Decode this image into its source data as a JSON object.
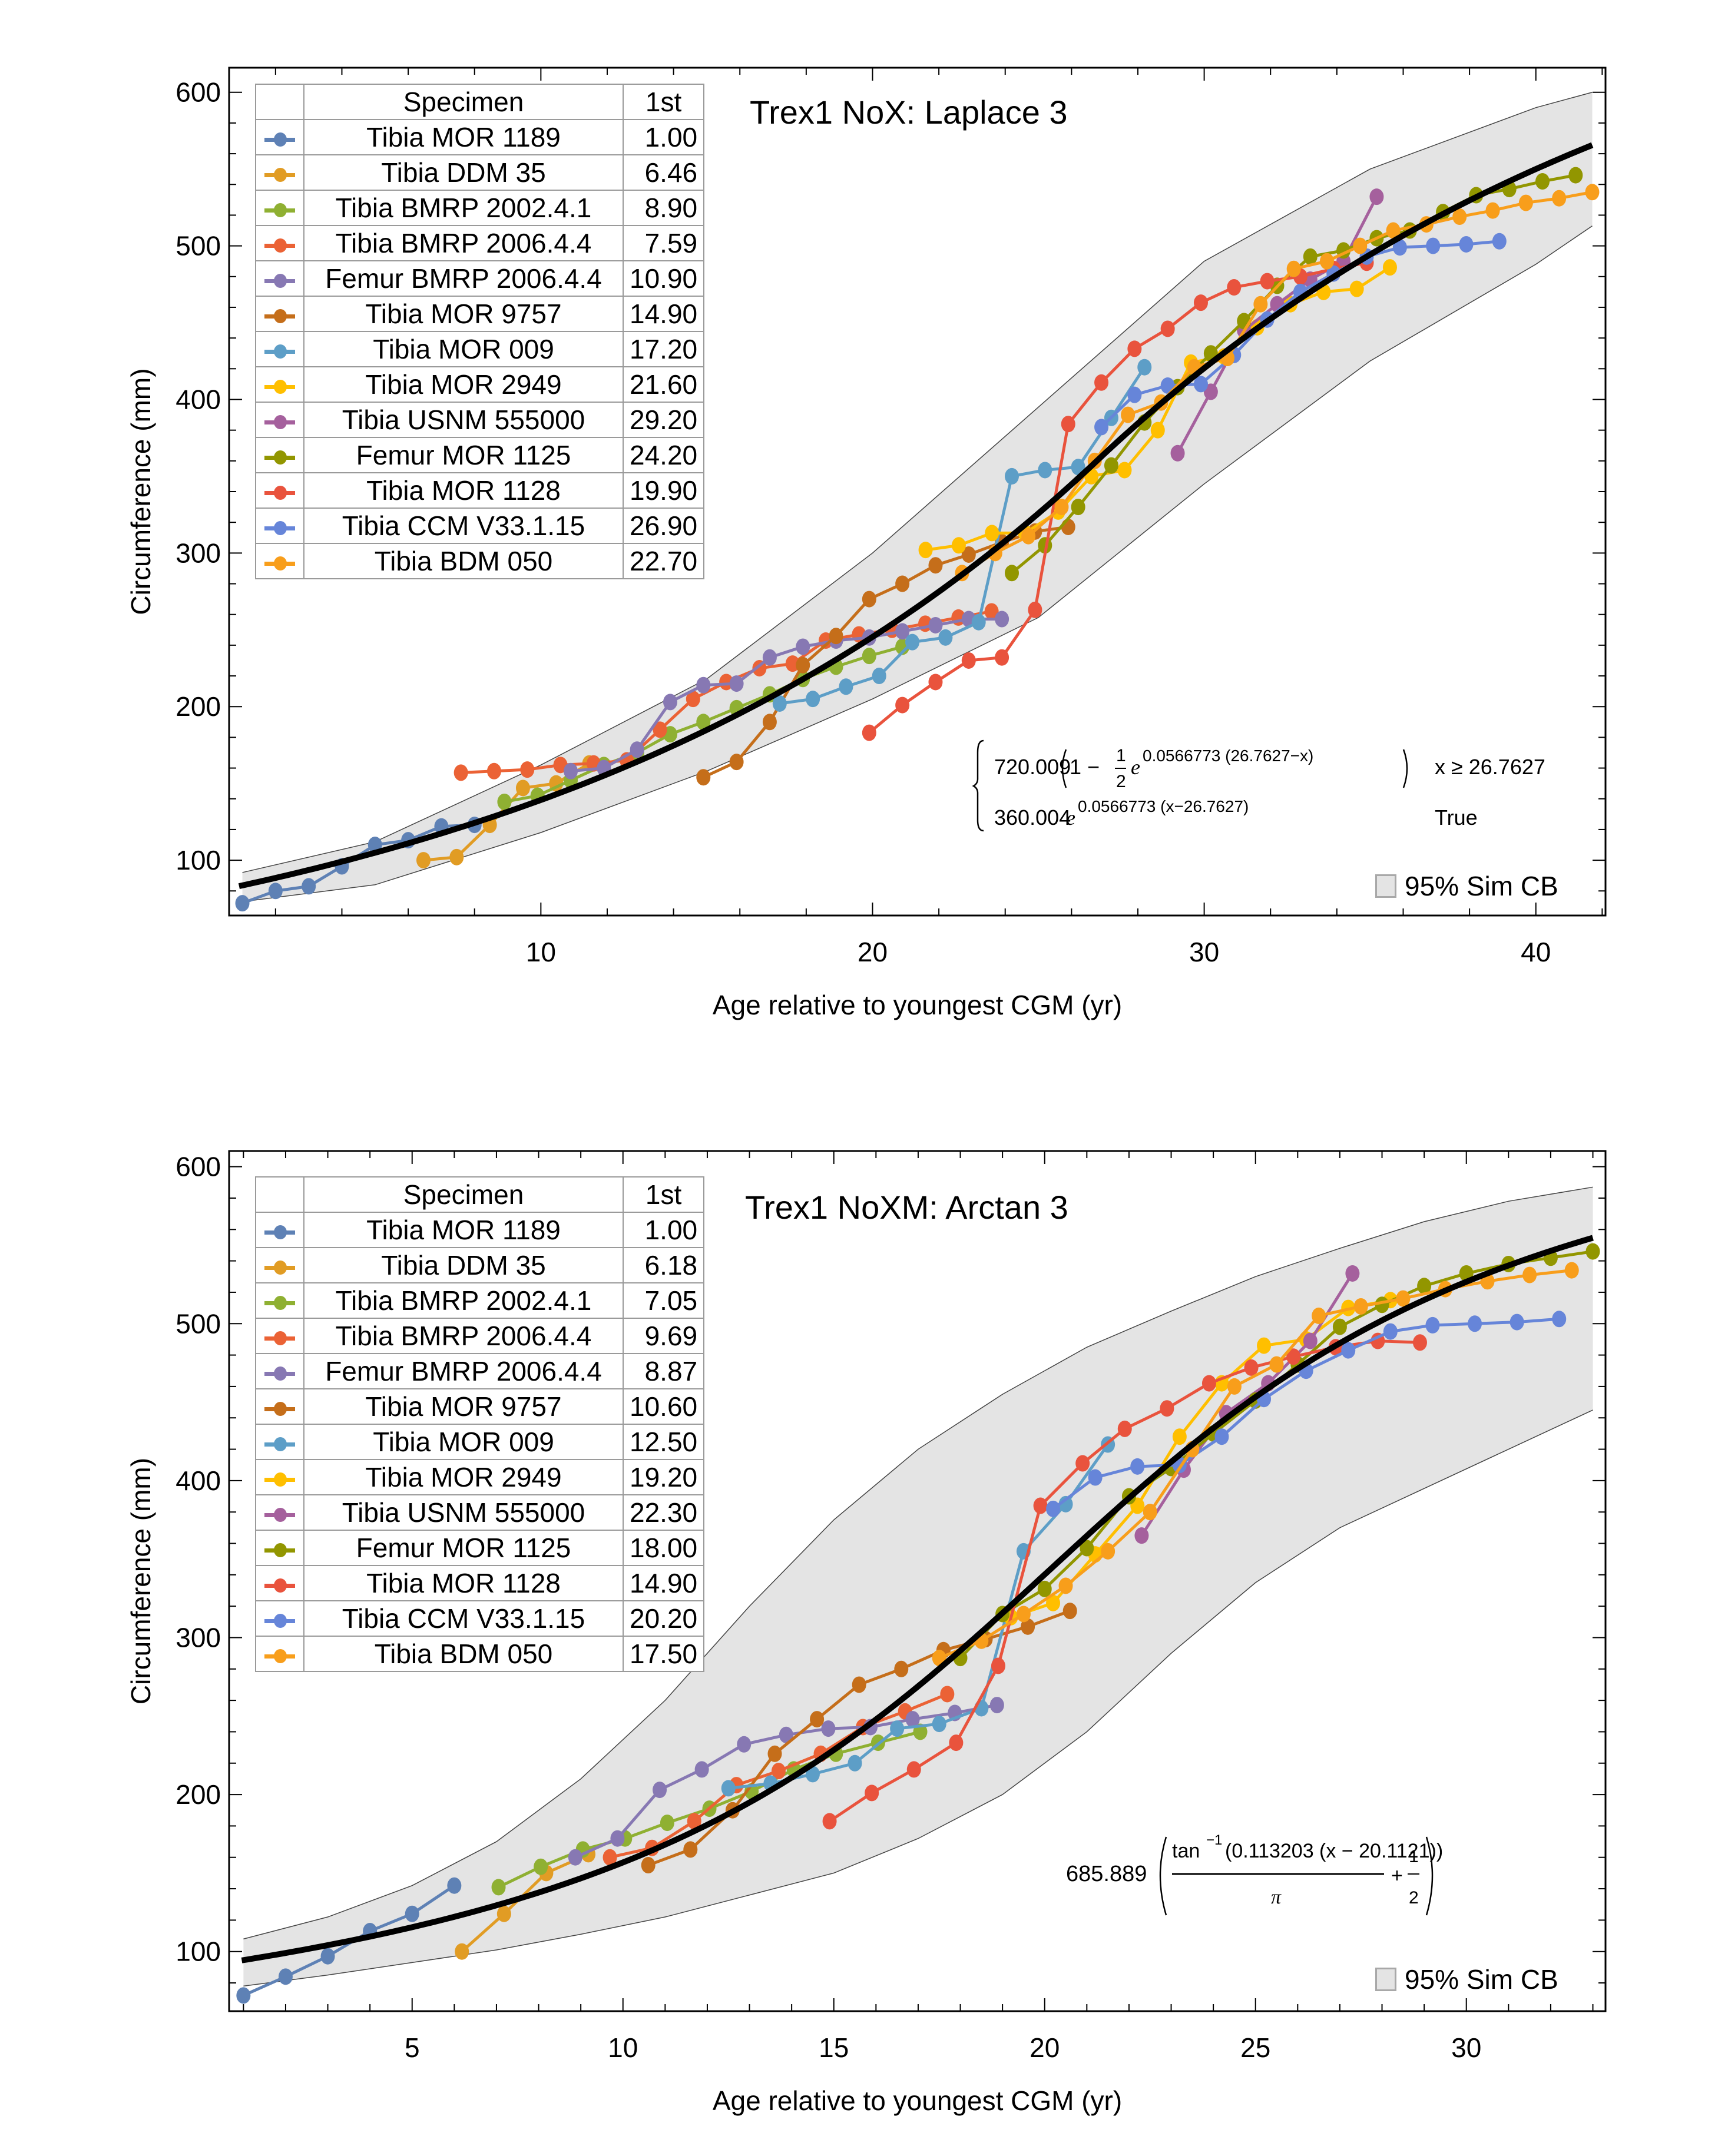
{
  "chart_data": [
    {
      "type": "line",
      "title": "Trex1 NoX: Laplace 3",
      "xlabel": "Age relative to youngest CGM (yr)",
      "ylabel": "Circumference (mm)",
      "xlim": [
        0.6,
        42.1
      ],
      "ylim": [
        64,
        616
      ],
      "xticks": [
        10,
        20,
        30,
        40
      ],
      "yticks": [
        100,
        200,
        300,
        400,
        500,
        600
      ],
      "legend_header": [
        "Specimen",
        "1st"
      ],
      "legend_position": "top-left",
      "ci_label": "95% Sim CB",
      "formula": {
        "type": "piecewise",
        "row1_coef": "720.009",
        "row1_body": "1 − ",
        "row1_frac_num": "1",
        "row1_frac_den": "2",
        "row1_exp": "0.0566773 (26.7627−x)",
        "row1_cond": "x ≥ 26.7627",
        "row2_coef": "360.004",
        "row2_exp": "0.0566773 (x−26.7627)",
        "row2_cond": "True"
      },
      "fit": {
        "model": "laplace",
        "a": 720.009,
        "k": 0.0566773,
        "x0": 26.7627
      },
      "ci_band": {
        "x": [
          1,
          5,
          10,
          15,
          20,
          25,
          30,
          35,
          40,
          41.7
        ],
        "lower": [
          73,
          84,
          118,
          158,
          205,
          258,
          345,
          425,
          488,
          513
        ],
        "upper": [
          92,
          112,
          162,
          218,
          300,
          395,
          490,
          550,
          590,
          600
        ]
      },
      "series": [
        {
          "name": "Tibia MOR 1189",
          "first": "1.00",
          "color": "#5E81B5",
          "x": [
            1,
            2,
            3,
            4,
            5,
            6,
            7,
            8
          ],
          "y": [
            72,
            80,
            83,
            96,
            110,
            113,
            122,
            123
          ]
        },
        {
          "name": "Tibia DDM 35",
          "first": "6.46",
          "color": "#E19C24",
          "x": [
            6.46,
            7.46,
            8.46,
            9.46,
            10.46,
            11.46
          ],
          "y": [
            100,
            102,
            123,
            147,
            150,
            163
          ]
        },
        {
          "name": "Tibia BMRP 2002.4.1",
          "first": "8.90",
          "color": "#8FB032",
          "x": [
            8.9,
            9.9,
            10.9,
            11.9,
            12.9,
            13.9,
            14.9,
            15.9,
            16.9,
            17.9,
            18.9,
            19.9,
            20.9
          ],
          "y": [
            138,
            142,
            152,
            162,
            170,
            182,
            190,
            199,
            208,
            218,
            226,
            233,
            239
          ]
        },
        {
          "name": "Tibia BMRP 2006.4.4",
          "first": "7.59",
          "color": "#EB6235",
          "x": [
            7.59,
            8.59,
            9.59,
            10.59,
            11.59,
            12.59,
            13.59,
            14.59,
            15.59,
            16.59,
            17.59,
            18.59,
            19.59,
            20.59,
            21.59,
            22.59,
            23.59
          ],
          "y": [
            157,
            158,
            159,
            162,
            163,
            165,
            185,
            205,
            216,
            225,
            228,
            243,
            247,
            250,
            254,
            258,
            262
          ]
        },
        {
          "name": "Femur BMRP 2006.4.4",
          "first": "10.90",
          "color": "#8778B3",
          "x": [
            10.9,
            11.9,
            12.9,
            13.9,
            14.9,
            15.9,
            16.9,
            17.9,
            18.9,
            19.9,
            20.9,
            21.9,
            22.9,
            23.9
          ],
          "y": [
            158,
            160,
            172,
            203,
            214,
            215,
            232,
            239,
            243,
            245,
            249,
            253,
            257,
            257
          ]
        },
        {
          "name": "Tibia MOR 9757",
          "first": "14.90",
          "color": "#C56E1A",
          "x": [
            14.9,
            15.9,
            16.9,
            17.9,
            18.9,
            19.9,
            20.9,
            21.9,
            22.9,
            23.9,
            24.9,
            25.9
          ],
          "y": [
            154,
            164,
            190,
            227,
            246,
            270,
            280,
            292,
            299,
            307,
            314,
            317
          ]
        },
        {
          "name": "Tibia MOR 009",
          "first": "17.20",
          "color": "#5D9EC7",
          "x": [
            17.2,
            18.2,
            19.2,
            20.2,
            21.2,
            22.2,
            23.2,
            24.2,
            25.2,
            26.2,
            27.2,
            28.2
          ],
          "y": [
            202,
            205,
            213,
            220,
            242,
            245,
            255,
            350,
            354,
            356,
            388,
            421
          ]
        },
        {
          "name": "Tibia MOR 2949",
          "first": "21.60",
          "color": "#FFBF00",
          "x": [
            21.6,
            22.6,
            23.6,
            24.6,
            25.6,
            26.6,
            27.6,
            28.6,
            29.6,
            30.6,
            31.6,
            32.6,
            33.6,
            34.6,
            35.6
          ],
          "y": [
            302,
            305,
            313,
            313,
            327,
            350,
            354,
            380,
            424,
            428,
            447,
            462,
            470,
            472,
            486
          ]
        },
        {
          "name": "Tibia USNM 555000",
          "first": "29.20",
          "color": "#A5609D",
          "x": [
            29.2,
            30.2,
            31.2,
            32.2,
            33.2,
            34.2,
            35.2
          ],
          "y": [
            365,
            405,
            445,
            462,
            478,
            490,
            532
          ]
        },
        {
          "name": "Femur MOR 1125",
          "first": "24.20",
          "color": "#929600",
          "x": [
            24.2,
            25.2,
            26.2,
            27.2,
            28.2,
            29.2,
            30.2,
            31.2,
            32.2,
            33.2,
            34.2,
            35.2,
            36.2,
            37.2,
            38.2,
            39.2,
            40.2,
            41.2
          ],
          "y": [
            287,
            305,
            330,
            357,
            385,
            408,
            430,
            451,
            474,
            493,
            497,
            505,
            510,
            522,
            533,
            537,
            542,
            546
          ]
        },
        {
          "name": "Tibia MOR 1128",
          "first": "19.90",
          "color": "#E9533D",
          "x": [
            19.9,
            20.9,
            21.9,
            22.9,
            23.9,
            24.9,
            25.9,
            26.9,
            27.9,
            28.9,
            29.9,
            30.9,
            31.9,
            32.9,
            33.9,
            34.9
          ],
          "y": [
            183,
            201,
            216,
            230,
            232,
            263,
            384,
            411,
            433,
            446,
            463,
            473,
            477,
            480,
            485,
            489
          ]
        },
        {
          "name": "Tibia CCM V33.1.15",
          "first": "26.90",
          "color": "#6685D9",
          "x": [
            26.9,
            27.9,
            28.9,
            29.9,
            30.9,
            31.9,
            32.9,
            33.9,
            34.9,
            35.9,
            36.9,
            37.9,
            38.9
          ],
          "y": [
            382,
            403,
            409,
            410,
            429,
            452,
            470,
            482,
            493,
            499,
            500,
            501,
            503
          ]
        },
        {
          "name": "Tibia BDM 050",
          "first": "22.70",
          "color": "#F89E1B",
          "x": [
            22.7,
            23.7,
            24.7,
            25.7,
            26.7,
            27.7,
            28.7,
            29.7,
            30.7,
            31.7,
            32.7,
            33.7,
            34.7,
            35.7,
            36.7,
            37.7,
            38.7,
            39.7,
            40.7,
            41.7
          ],
          "y": [
            287,
            300,
            311,
            330,
            360,
            390,
            398,
            421,
            427,
            462,
            485,
            490,
            500,
            510,
            514,
            519,
            523,
            528,
            531,
            535
          ]
        }
      ]
    },
    {
      "type": "line",
      "title": "Trex1 NoXM: Arctan 3",
      "xlabel": "Age relative to youngest CGM (yr)",
      "ylabel": "Circumference (mm)",
      "xlim": [
        0.66,
        33.3
      ],
      "ylim": [
        62,
        610
      ],
      "xticks": [
        5,
        10,
        15,
        20,
        25,
        30
      ],
      "yticks": [
        100,
        200,
        300,
        400,
        500,
        600
      ],
      "legend_header": [
        "Specimen",
        "1st"
      ],
      "legend_position": "top-left",
      "ci_label": "95% Sim CB",
      "formula": {
        "type": "arctan",
        "coef": "685.889",
        "numerator_fn": "tan",
        "numerator_sup": "−1",
        "numerator_arg": "(0.113203 (x − 20.1121))",
        "denominator": "π",
        "plus": "+",
        "frac_num": "1",
        "frac_den": "2"
      },
      "fit": {
        "model": "arctan",
        "a": 685.889,
        "k": 0.113203,
        "x0": 20.1121
      },
      "ci_band": {
        "x": [
          1,
          3,
          5,
          7,
          9,
          11,
          13,
          15,
          17,
          19,
          21,
          23,
          25,
          27,
          29,
          31,
          33
        ],
        "lower": [
          78,
          85,
          93,
          101,
          111,
          122,
          136,
          150,
          172,
          200,
          240,
          290,
          335,
          370,
          395,
          420,
          445
        ],
        "upper": [
          108,
          122,
          142,
          170,
          210,
          260,
          320,
          375,
          420,
          455,
          485,
          508,
          530,
          548,
          565,
          578,
          587
        ]
      },
      "series": [
        {
          "name": "Tibia MOR 1189",
          "first": "1.00",
          "color": "#5E81B5",
          "x": [
            1,
            2,
            3,
            4,
            5,
            6
          ],
          "y": [
            72,
            84,
            97,
            113,
            124,
            142
          ]
        },
        {
          "name": "Tibia DDM 35",
          "first": "6.18",
          "color": "#E19C24",
          "x": [
            6.18,
            7.18,
            8.18,
            9.18
          ],
          "y": [
            100,
            124,
            150,
            162
          ]
        },
        {
          "name": "Tibia BMRP 2002.4.1",
          "first": "7.05",
          "color": "#8FB032",
          "x": [
            7.05,
            8.05,
            9.05,
            10.05,
            11.05,
            12.05,
            13.05,
            14.05,
            15.05,
            16.05,
            17.05
          ],
          "y": [
            141,
            154,
            165,
            172,
            182,
            191,
            202,
            216,
            226,
            233,
            240
          ]
        },
        {
          "name": "Tibia BMRP 2006.4.4",
          "first": "9.69",
          "color": "#EB6235",
          "x": [
            9.69,
            10.69,
            11.69,
            12.69,
            13.69,
            14.69,
            15.69,
            16.69,
            17.69
          ],
          "y": [
            160,
            166,
            183,
            206,
            215,
            226,
            243,
            253,
            264
          ]
        },
        {
          "name": "Femur BMRP 2006.4.4",
          "first": "8.87",
          "color": "#8778B3",
          "x": [
            8.87,
            9.87,
            10.87,
            11.87,
            12.87,
            13.87,
            14.87,
            15.87,
            16.87,
            17.87,
            18.87
          ],
          "y": [
            160,
            172,
            203,
            216,
            232,
            238,
            242,
            243,
            248,
            252,
            257
          ]
        },
        {
          "name": "Tibia MOR 9757",
          "first": "10.60",
          "color": "#C56E1A",
          "x": [
            10.6,
            11.6,
            12.6,
            13.6,
            14.6,
            15.6,
            16.6,
            17.6,
            18.6,
            19.6,
            20.6
          ],
          "y": [
            155,
            165,
            190,
            226,
            248,
            270,
            280,
            292,
            299,
            307,
            317
          ]
        },
        {
          "name": "Tibia MOR 009",
          "first": "12.50",
          "color": "#5D9EC7",
          "x": [
            12.5,
            13.5,
            14.5,
            15.5,
            16.5,
            17.5,
            18.5,
            19.5,
            20.5,
            21.5
          ],
          "y": [
            204,
            207,
            213,
            220,
            242,
            245,
            255,
            355,
            385,
            423
          ]
        },
        {
          "name": "Tibia MOR 2949",
          "first": "19.20",
          "color": "#FFBF00",
          "x": [
            19.2,
            20.2,
            21.2,
            22.2,
            23.2,
            24.2,
            25.2,
            26.2,
            27.2,
            28.2
          ],
          "y": [
            313,
            322,
            353,
            384,
            428,
            462,
            486,
            490,
            510,
            515
          ]
        },
        {
          "name": "Tibia USNM 555000",
          "first": "22.30",
          "color": "#A5609D",
          "x": [
            22.3,
            23.3,
            24.3,
            25.3,
            26.3,
            27.3
          ],
          "y": [
            365,
            407,
            443,
            462,
            489,
            532
          ]
        },
        {
          "name": "Femur MOR 1125",
          "first": "18.00",
          "color": "#929600",
          "x": [
            18,
            19,
            20,
            21,
            22,
            23,
            24,
            25,
            26,
            27,
            28,
            29,
            30,
            31,
            32,
            33
          ],
          "y": [
            287,
            315,
            331,
            357,
            390,
            408,
            430,
            451,
            474,
            498,
            512,
            524,
            532,
            538,
            542,
            546
          ]
        },
        {
          "name": "Tibia MOR 1128",
          "first": "14.90",
          "color": "#E9533D",
          "x": [
            14.9,
            15.9,
            16.9,
            17.9,
            18.9,
            19.9,
            20.9,
            21.9,
            22.9,
            23.9,
            24.9,
            25.9,
            26.9,
            27.9,
            28.9
          ],
          "y": [
            183,
            201,
            216,
            233,
            282,
            384,
            411,
            433,
            446,
            462,
            472,
            479,
            485,
            489,
            488
          ]
        },
        {
          "name": "Tibia CCM V33.1.15",
          "first": "20.20",
          "color": "#6685D9",
          "x": [
            20.2,
            21.2,
            22.2,
            23.2,
            24.2,
            25.2,
            26.2,
            27.2,
            28.2,
            29.2,
            30.2,
            31.2,
            32.2
          ],
          "y": [
            382,
            402,
            409,
            410,
            428,
            452,
            470,
            483,
            495,
            499,
            500,
            501,
            503
          ]
        },
        {
          "name": "Tibia BDM 050",
          "first": "17.50",
          "color": "#F89E1B",
          "x": [
            17.5,
            18.5,
            19.5,
            20.5,
            21.5,
            22.5,
            23.5,
            24.5,
            25.5,
            26.5,
            27.5,
            28.5,
            29.5,
            30.5,
            31.5,
            32.5
          ],
          "y": [
            287,
            298,
            315,
            333,
            355,
            380,
            420,
            460,
            474,
            505,
            511,
            516,
            522,
            527,
            531,
            534
          ]
        }
      ]
    }
  ]
}
